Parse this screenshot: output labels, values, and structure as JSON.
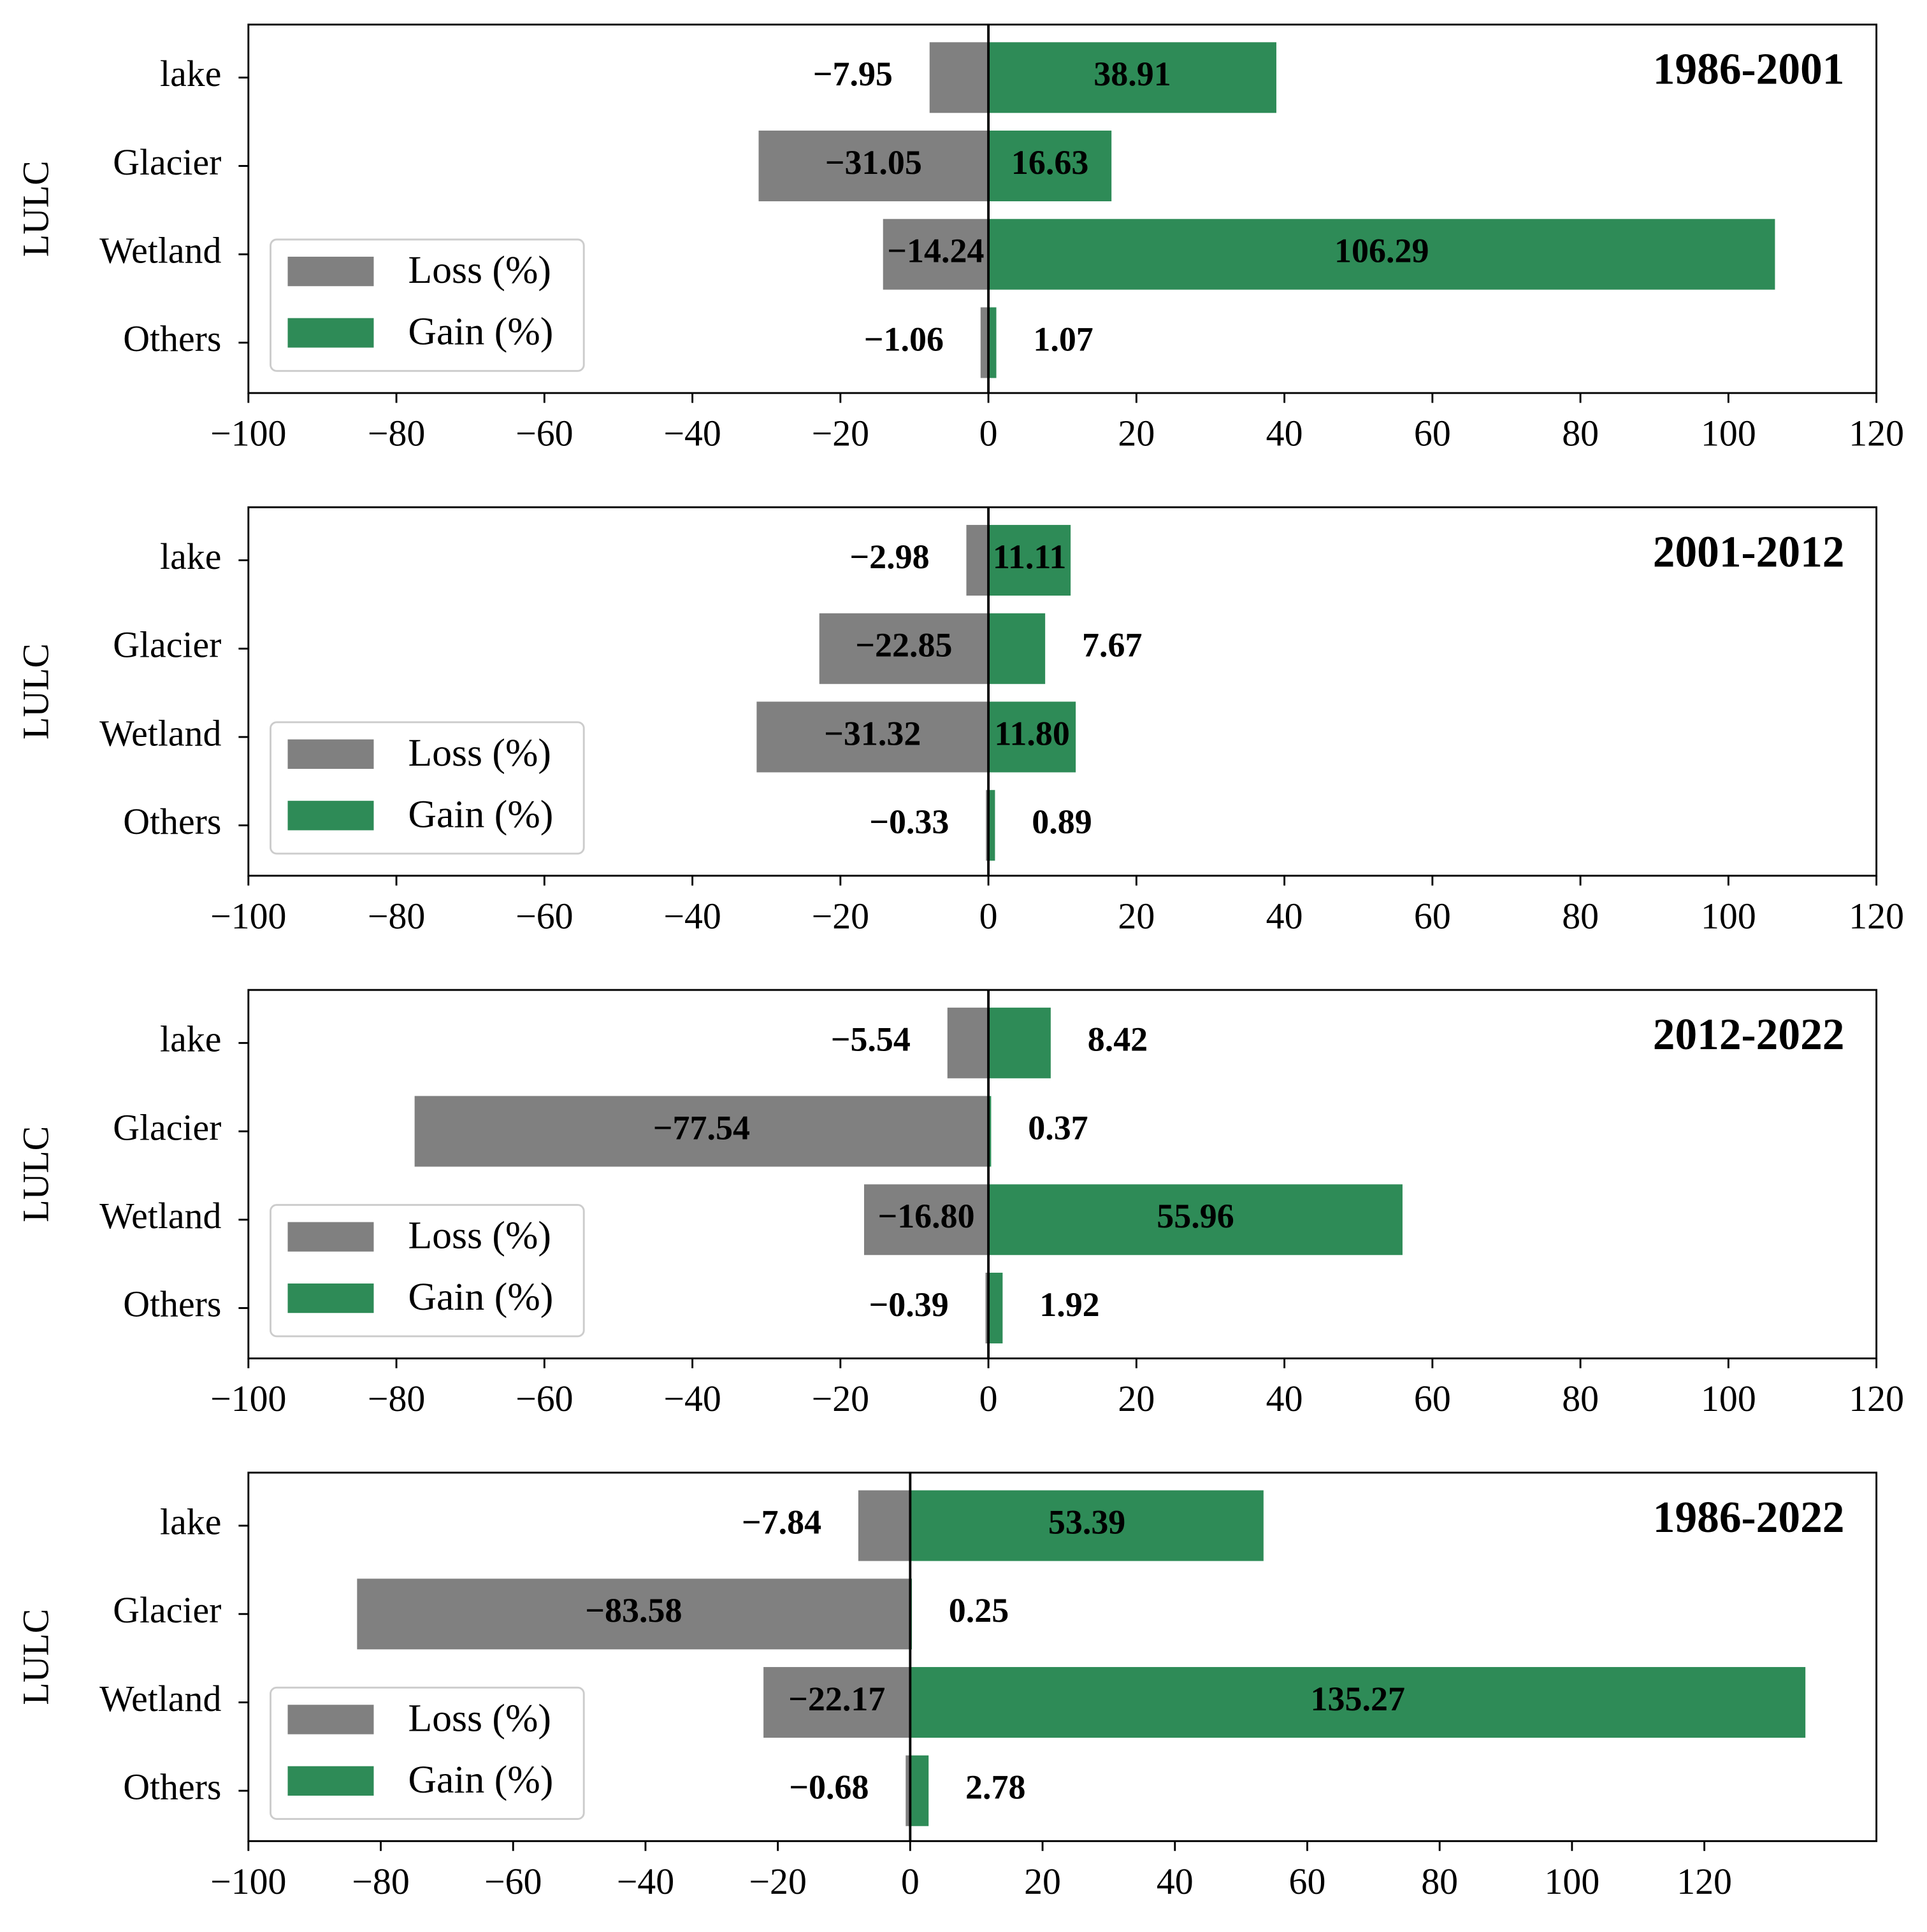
{
  "chart_data": [
    {
      "type": "bar",
      "orientation": "horizontal",
      "annotation": "1986-2001",
      "ylabel": "LULC",
      "categories": [
        "lake",
        "Glacier",
        "Wetland",
        "Others"
      ],
      "series": [
        {
          "name": "Loss (%)",
          "color": "#808080",
          "values": [
            -7.95,
            -31.05,
            -14.24,
            -1.06
          ],
          "value_labels": [
            "−7.95",
            "−31.05",
            "−14.24",
            "−1.06"
          ]
        },
        {
          "name": "Gain (%)",
          "color": "#2e8b57",
          "values": [
            38.91,
            16.63,
            106.29,
            1.07
          ],
          "value_labels": [
            "38.91",
            "16.63",
            "106.29",
            "1.07"
          ]
        }
      ],
      "xlim": [
        -100,
        120
      ],
      "xticks": [
        {
          "value": -100,
          "label": "−100"
        },
        {
          "value": -80,
          "label": "−80"
        },
        {
          "value": -60,
          "label": "−60"
        },
        {
          "value": -40,
          "label": "−40"
        },
        {
          "value": -20,
          "label": "−20"
        },
        0,
        20,
        40,
        60,
        80,
        100,
        120
      ],
      "legend": "lower left"
    },
    {
      "type": "bar",
      "orientation": "horizontal",
      "annotation": "2001-2012",
      "ylabel": "LULC",
      "categories": [
        "lake",
        "Glacier",
        "Wetland",
        "Others"
      ],
      "series": [
        {
          "name": "Loss (%)",
          "color": "#808080",
          "values": [
            -2.98,
            -22.85,
            -31.32,
            -0.33
          ],
          "value_labels": [
            "−2.98",
            "−22.85",
            "−31.32",
            "−0.33"
          ]
        },
        {
          "name": "Gain (%)",
          "color": "#2e8b57",
          "values": [
            11.11,
            7.67,
            11.8,
            0.89
          ],
          "value_labels": [
            "11.11",
            "7.67",
            "11.80",
            "0.89"
          ]
        }
      ],
      "xlim": [
        -100,
        120
      ],
      "xticks": [
        {
          "value": -100,
          "label": "−100"
        },
        {
          "value": -80,
          "label": "−80"
        },
        {
          "value": -60,
          "label": "−60"
        },
        {
          "value": -40,
          "label": "−40"
        },
        {
          "value": -20,
          "label": "−20"
        },
        0,
        20,
        40,
        60,
        80,
        100,
        120
      ],
      "legend": "lower left"
    },
    {
      "type": "bar",
      "orientation": "horizontal",
      "annotation": "2012-2022",
      "ylabel": "LULC",
      "categories": [
        "lake",
        "Glacier",
        "Wetland",
        "Others"
      ],
      "series": [
        {
          "name": "Loss (%)",
          "color": "#808080",
          "values": [
            -5.54,
            -77.54,
            -16.8,
            -0.39
          ],
          "value_labels": [
            "−5.54",
            "−77.54",
            "−16.80",
            "−0.39"
          ]
        },
        {
          "name": "Gain (%)",
          "color": "#2e8b57",
          "values": [
            8.42,
            0.37,
            55.96,
            1.92
          ],
          "value_labels": [
            "8.42",
            "0.37",
            "55.96",
            "1.92"
          ]
        }
      ],
      "xlim": [
        -100,
        120
      ],
      "xticks": [
        {
          "value": -100,
          "label": "−100"
        },
        {
          "value": -80,
          "label": "−80"
        },
        {
          "value": -60,
          "label": "−60"
        },
        {
          "value": -40,
          "label": "−40"
        },
        {
          "value": -20,
          "label": "−20"
        },
        0,
        20,
        40,
        60,
        80,
        100,
        120
      ],
      "legend": "lower left"
    },
    {
      "type": "bar",
      "orientation": "horizontal",
      "annotation": "1986-2022",
      "ylabel": "LULC",
      "categories": [
        "lake",
        "Glacier",
        "Wetland",
        "Others"
      ],
      "series": [
        {
          "name": "Loss (%)",
          "color": "#808080",
          "values": [
            -7.84,
            -83.58,
            -22.17,
            -0.68
          ],
          "value_labels": [
            "−7.84",
            "−83.58",
            "−22.17",
            "−0.68"
          ]
        },
        {
          "name": "Gain (%)",
          "color": "#2e8b57",
          "values": [
            53.39,
            0.25,
            135.27,
            2.78
          ],
          "value_labels": [
            "53.39",
            "0.25",
            "135.27",
            "2.78"
          ]
        }
      ],
      "xlim": [
        -100,
        146
      ],
      "xticks": [
        {
          "value": -100,
          "label": "−100"
        },
        {
          "value": -80,
          "label": "−80"
        },
        {
          "value": -60,
          "label": "−60"
        },
        {
          "value": -40,
          "label": "−40"
        },
        {
          "value": -20,
          "label": "−20"
        },
        0,
        20,
        40,
        60,
        80,
        100,
        120
      ],
      "legend": "lower left"
    }
  ]
}
